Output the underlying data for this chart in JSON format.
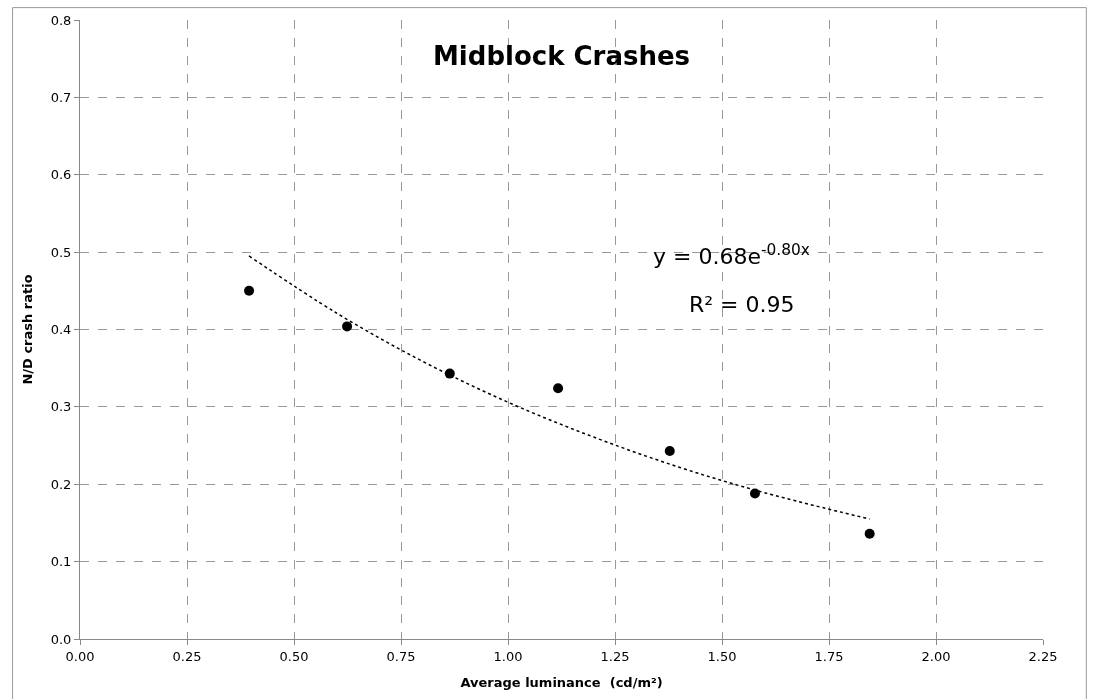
{
  "chart_data": {
    "type": "scatter",
    "title": "Midblock Crashes",
    "xlabel": "Average luminance  (cd/m²)",
    "ylabel": "N/D crash ratio",
    "series": [
      {
        "color": "#000000",
        "marker": "circle",
        "x": [
          0.395,
          0.624,
          0.864,
          1.117,
          1.378,
          1.577,
          1.845
        ],
        "values": [
          0.45,
          0.404,
          0.343,
          0.324,
          0.243,
          0.188,
          0.136
        ]
      },
      {
        "type": "line",
        "color": "#000000",
        "line_style": "dotted",
        "marker": "none",
        "x": [
          0.395,
          0.6,
          0.8,
          1.0,
          1.2,
          1.4,
          1.6,
          1.845
        ],
        "values": [
          0.495,
          0.421,
          0.359,
          0.306,
          0.261,
          0.222,
          0.189,
          0.155
        ]
      }
    ],
    "annotations": [
      "y = 0.68e$^{-0.80x}$",
      "R² = 0.95"
    ],
    "xlim": [
      0,
      2.25
    ],
    "xticks": [
      {
        "value": 0,
        "label": "0.00"
      },
      {
        "value": 0.25,
        "label": "0.25"
      },
      {
        "value": 0.5,
        "label": "0.50"
      },
      {
        "value": 0.75,
        "label": "0.75"
      },
      {
        "value": 1,
        "label": "1.00"
      },
      {
        "value": 1.25,
        "label": "1.25"
      },
      {
        "value": 1.5,
        "label": "1.50"
      },
      {
        "value": 1.75,
        "label": "1.75"
      },
      {
        "value": 2,
        "label": "2.00"
      },
      {
        "value": 2.25,
        "label": "2.25"
      }
    ],
    "ylim": [
      0,
      0.8
    ],
    "yticks": [
      {
        "value": 0,
        "label": "0.0"
      },
      {
        "value": 0.1,
        "label": "0.1"
      },
      {
        "value": 0.2,
        "label": "0.2"
      },
      {
        "value": 0.3,
        "label": "0.3"
      },
      {
        "value": 0.4,
        "label": "0.4"
      },
      {
        "value": 0.5,
        "label": "0.5"
      },
      {
        "value": 0.6,
        "label": "0.6"
      },
      {
        "value": 0.7,
        "label": "0.7"
      },
      {
        "value": 0.8,
        "label": "0.8"
      }
    ],
    "grid": true
  }
}
